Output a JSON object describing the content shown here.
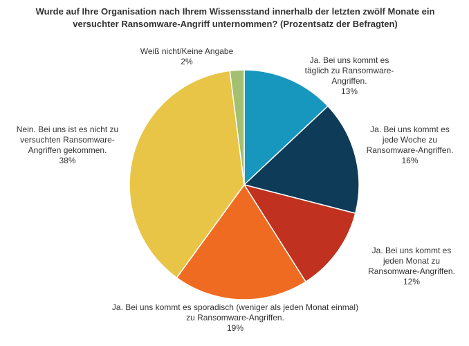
{
  "chart_data": {
    "type": "pie",
    "title": "Wurde auf Ihre Organisation nach Ihrem Wissensstand innerhalb der letzten zwölf Monate ein versuchter Ransomware-Angriff unternommen? (Prozentsatz der Befragten)",
    "categories": [
      "Ja. Bei uns kommt es täglich zu Ransomware-Angriffen.",
      "Ja. Bei uns kommt es jede Woche zu Ransomware-Angriffen.",
      "Ja. Bei uns kommt es jeden Monat zu Ransomware-Angriffen.",
      "Ja. Bei uns kommt es sporadisch (weniger als jeden Monat einmal) zu Ransomware-Angriffen.",
      "Nein. Bei uns ist es nicht zu versuchten Ransomware-Angriffen gekommen.",
      "Weiß nicht/Keine Angabe"
    ],
    "values": [
      13,
      16,
      12,
      19,
      38,
      2
    ],
    "value_labels": [
      "13%",
      "16%",
      "12%",
      "19%",
      "38%",
      "2%"
    ],
    "colors": [
      "#1897be",
      "#0e3b57",
      "#c0311f",
      "#f06b22",
      "#e8c547",
      "#a3bf70"
    ]
  }
}
